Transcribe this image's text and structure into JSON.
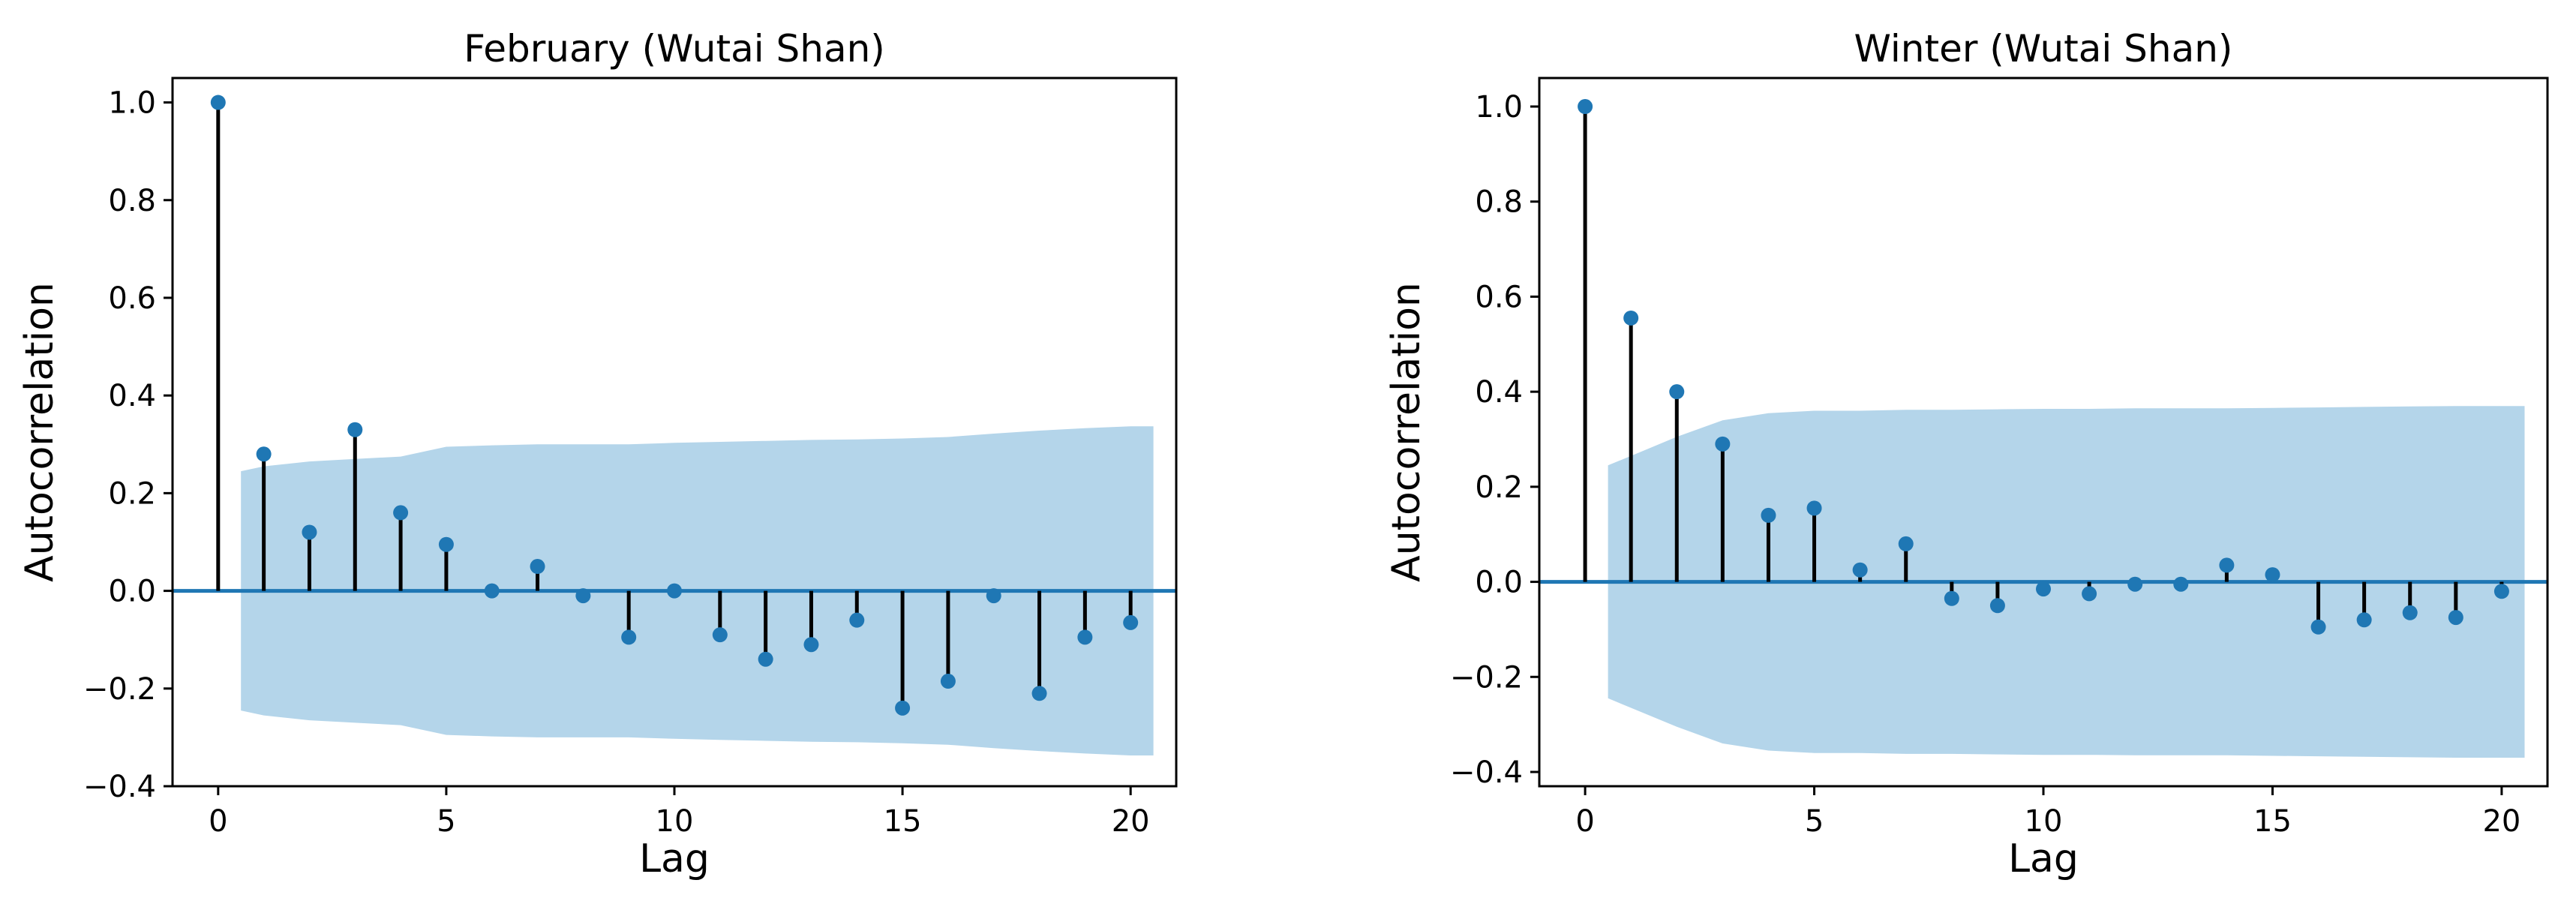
{
  "chart_data": [
    {
      "type": "stem",
      "title": "February (Wutai Shan)",
      "xlabel": "Lag",
      "ylabel": "Autocorrelation",
      "xlim": [
        -1,
        21
      ],
      "ylim": [
        -0.4,
        1.05
      ],
      "xticks": [
        0,
        5,
        10,
        15,
        20
      ],
      "yticks": [
        -0.4,
        -0.2,
        0.0,
        0.2,
        0.4,
        0.6,
        0.8,
        1.0
      ],
      "ytick_labels": [
        "−0.4",
        "−0.2",
        "0.0",
        "0.2",
        "0.4",
        "0.6",
        "0.8",
        "1.0"
      ],
      "xtick_labels": [
        "0",
        "5",
        "10",
        "15",
        "20"
      ],
      "lags": [
        0,
        1,
        2,
        3,
        4,
        5,
        6,
        7,
        8,
        9,
        10,
        11,
        12,
        13,
        14,
        15,
        16,
        17,
        18,
        19,
        20
      ],
      "values": [
        1.0,
        0.28,
        0.12,
        0.33,
        0.16,
        0.095,
        0.0,
        0.05,
        -0.01,
        -0.095,
        0.0,
        -0.09,
        -0.14,
        -0.11,
        -0.06,
        -0.24,
        -0.185,
        -0.01,
        -0.21,
        -0.095,
        -0.065
      ],
      "confidence_band": {
        "lags": [
          0.5,
          1,
          2,
          3,
          4,
          5,
          6,
          7,
          8,
          9,
          10,
          11,
          12,
          13,
          14,
          15,
          16,
          17,
          18,
          19,
          20,
          20.5
        ],
        "upper": [
          0.245,
          0.255,
          0.265,
          0.27,
          0.275,
          0.295,
          0.298,
          0.3,
          0.3,
          0.3,
          0.303,
          0.305,
          0.307,
          0.309,
          0.31,
          0.312,
          0.315,
          0.322,
          0.328,
          0.333,
          0.337,
          0.337
        ]
      },
      "colors": {
        "marker": "#1f77b4",
        "stem": "#000000",
        "baseline": "#1f77b4",
        "band": "#b4d5ea"
      }
    },
    {
      "type": "stem",
      "title": "Winter (Wutai Shan)",
      "xlabel": "Lag",
      "ylabel": "Autocorrelation",
      "xlim": [
        -1,
        21
      ],
      "ylim": [
        -0.43,
        1.06
      ],
      "xticks": [
        0,
        5,
        10,
        15,
        20
      ],
      "yticks": [
        -0.4,
        -0.2,
        0.0,
        0.2,
        0.4,
        0.6,
        0.8,
        1.0
      ],
      "ytick_labels": [
        "−0.4",
        "−0.2",
        "0.0",
        "0.2",
        "0.4",
        "0.6",
        "0.8",
        "1.0"
      ],
      "xtick_labels": [
        "0",
        "5",
        "10",
        "15",
        "20"
      ],
      "lags": [
        0,
        1,
        2,
        3,
        4,
        5,
        6,
        7,
        8,
        9,
        10,
        11,
        12,
        13,
        14,
        15,
        16,
        17,
        18,
        19,
        20
      ],
      "values": [
        1.0,
        0.555,
        0.4,
        0.29,
        0.14,
        0.155,
        0.025,
        0.08,
        -0.035,
        -0.05,
        -0.015,
        -0.025,
        -0.005,
        -0.005,
        0.035,
        0.015,
        -0.095,
        -0.08,
        -0.065,
        -0.075,
        -0.02
      ],
      "confidence_band": {
        "lags": [
          0.5,
          1,
          2,
          3,
          4,
          5,
          6,
          7,
          8,
          9,
          10,
          11,
          12,
          13,
          14,
          15,
          16,
          17,
          18,
          19,
          20,
          20.5
        ],
        "upper": [
          0.245,
          0.265,
          0.305,
          0.34,
          0.355,
          0.36,
          0.36,
          0.362,
          0.362,
          0.363,
          0.364,
          0.364,
          0.365,
          0.365,
          0.365,
          0.366,
          0.367,
          0.368,
          0.369,
          0.37,
          0.37,
          0.37
        ]
      },
      "colors": {
        "marker": "#1f77b4",
        "stem": "#000000",
        "baseline": "#1f77b4",
        "band": "#b4d5ea"
      }
    }
  ]
}
